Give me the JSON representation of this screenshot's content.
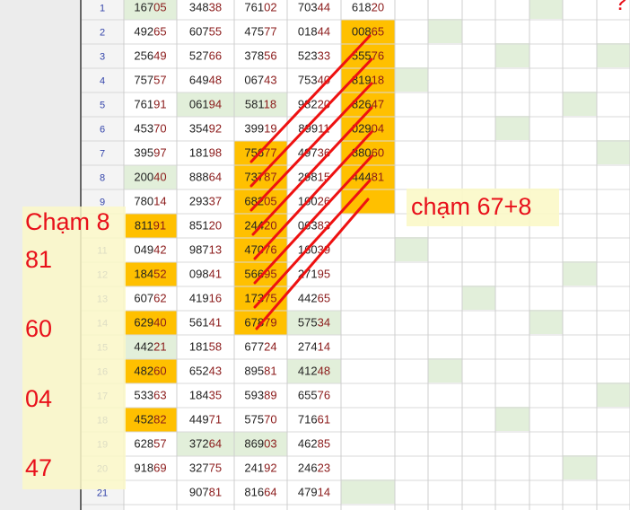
{
  "table": {
    "rows": [
      {
        "num": "1",
        "cells": [
          "16705",
          "34838",
          "76102",
          "70344",
          "61820"
        ]
      },
      {
        "num": "2",
        "cells": [
          "49265",
          "60755",
          "47577",
          "01844",
          "00865"
        ]
      },
      {
        "num": "3",
        "cells": [
          "25649",
          "52766",
          "37856",
          "52333",
          "55576"
        ]
      },
      {
        "num": "4",
        "cells": [
          "75757",
          "64948",
          "06743",
          "75340",
          "81918"
        ]
      },
      {
        "num": "5",
        "cells": [
          "76191",
          "06194",
          "58118",
          "98220",
          "82647"
        ]
      },
      {
        "num": "6",
        "cells": [
          "45370",
          "35492",
          "39919",
          "89911",
          "02904"
        ]
      },
      {
        "num": "7",
        "cells": [
          "39597",
          "18198",
          "75677",
          "49736",
          "88060"
        ]
      },
      {
        "num": "8",
        "cells": [
          "20040",
          "88864",
          "73787",
          "29815",
          "44481"
        ]
      },
      {
        "num": "9",
        "cells": [
          "78014",
          "29337",
          "68205",
          "10026",
          null
        ]
      },
      {
        "num": "10",
        "cells": [
          "81191",
          "85120",
          "24420",
          "06383",
          null
        ]
      },
      {
        "num": "11",
        "cells": [
          "04942",
          "98713",
          "47076",
          "16039",
          null
        ]
      },
      {
        "num": "12",
        "cells": [
          "18452",
          "09841",
          "56695",
          "27195",
          null
        ]
      },
      {
        "num": "13",
        "cells": [
          "60762",
          "41916",
          "17375",
          "44265",
          null
        ]
      },
      {
        "num": "14",
        "cells": [
          "62940",
          "56141",
          "67879",
          "57534",
          null
        ]
      },
      {
        "num": "15",
        "cells": [
          "44221",
          "18158",
          "67724",
          "27414",
          null
        ]
      },
      {
        "num": "16",
        "cells": [
          "48260",
          "65243",
          "89581",
          "41248",
          null
        ]
      },
      {
        "num": "17",
        "cells": [
          "53363",
          "18435",
          "59389",
          "65576",
          null
        ]
      },
      {
        "num": "18",
        "cells": [
          "45282",
          "44971",
          "57570",
          "71661",
          null
        ]
      },
      {
        "num": "19",
        "cells": [
          "62857",
          "37264",
          "86903",
          "46285",
          null
        ]
      },
      {
        "num": "20",
        "cells": [
          "91869",
          "32775",
          "24192",
          "24623",
          null
        ]
      },
      {
        "num": "21",
        "cells": [
          null,
          "90781",
          "81664",
          "47914",
          null
        ]
      }
    ]
  },
  "left_note": {
    "title": "Chạm 8",
    "items": [
      "81",
      "60",
      "04",
      "47"
    ]
  },
  "right_note": "chạm 67+8",
  "corner_mark": "??"
}
